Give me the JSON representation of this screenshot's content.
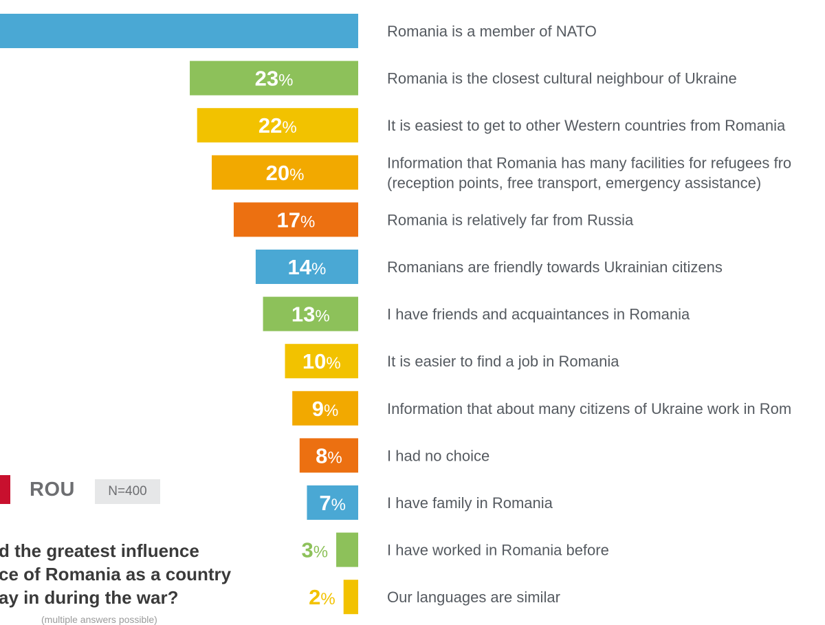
{
  "chart_data": {
    "type": "bar",
    "orientation": "horizontal",
    "unit": "%",
    "categories": [
      "Romania is a member of NATO",
      "Romania is the closest cultural neighbour of Ukraine",
      "It is easiest to get to other Western countries from Romania",
      "Information that Romania has many facilities for refugees fro\n(reception points, free transport, emergency assistance)",
      "Romania is relatively far from Russia",
      "Romanians are friendly towards Ukrainian citizens",
      "I have friends and acquaintances in Romania",
      "It is easier to find a job in Romania",
      "Information that about many citizens of Ukraine work in Rom",
      "I had no choice",
      "I have family in Romania",
      "I have worked in Romania before",
      "Our languages are similar"
    ],
    "values": [
      null,
      23,
      22,
      20,
      17,
      14,
      13,
      10,
      9,
      8,
      7,
      3,
      2
    ],
    "value_labels": [
      "",
      "23",
      "22",
      "20",
      "17",
      "14",
      "13",
      "10",
      "9",
      "8",
      "7",
      "3",
      "2"
    ],
    "bar_colors": [
      "#4aa8d4",
      "#8dc15a",
      "#f2c200",
      "#f2a900",
      "#ec7011",
      "#4aa8d4",
      "#8dc15a",
      "#f2c200",
      "#f2a900",
      "#ec7011",
      "#4aa8d4",
      "#8dc15a",
      "#f2c200"
    ],
    "percent_sign": "%",
    "legend": {
      "country": "ROU",
      "sample": "N=400",
      "country_color": "#c8102e"
    },
    "question_lines": [
      "d the greatest influence",
      "ce of Romania as a country",
      "ay in during the war?"
    ],
    "footnote": "(multiple answers possible)"
  }
}
